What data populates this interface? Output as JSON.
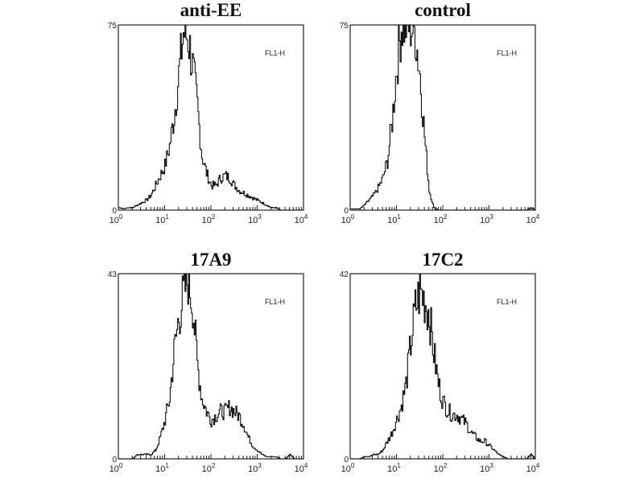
{
  "chart_data": [
    {
      "type": "line",
      "title": "anti-EE",
      "channel_label": "FL1-H",
      "x_scale": "log",
      "xlim": [
        1,
        10000
      ],
      "ylim": [
        0,
        75
      ],
      "y_tick_labels": [
        "0",
        "75"
      ],
      "x_tick_labels": [
        "10^0",
        "10^1",
        "10^2",
        "10^3",
        "10^4"
      ],
      "x": [
        1,
        1.26,
        1.58,
        2,
        2.51,
        3.16,
        3.98,
        5.01,
        6.31,
        7.94,
        10,
        12.6,
        15.8,
        20,
        25.1,
        31.6,
        39.8,
        50.1,
        63.1,
        79.4,
        100,
        126,
        158,
        200,
        251,
        316,
        398,
        501,
        631,
        794,
        1000,
        1259,
        1585,
        1995,
        2512,
        3162,
        3981,
        5012,
        6310,
        7943,
        10000
      ],
      "values": [
        1,
        0.5,
        1,
        1,
        2,
        3,
        4,
        6,
        10,
        14,
        18,
        26,
        38,
        55,
        72,
        70,
        58,
        42,
        22,
        15,
        10,
        10,
        13,
        14,
        13,
        10,
        8,
        7,
        6,
        5,
        4,
        3,
        2,
        1,
        1,
        0,
        0,
        0,
        0,
        0,
        0
      ]
    },
    {
      "type": "line",
      "title": "control",
      "channel_label": "FL1-H",
      "x_scale": "log",
      "xlim": [
        1,
        10000
      ],
      "ylim": [
        0,
        75
      ],
      "y_tick_labels": [
        "0",
        "75"
      ],
      "x_tick_labels": [
        "10^0",
        "10^1",
        "10^2",
        "10^3",
        "10^4"
      ],
      "x": [
        1,
        1.26,
        1.58,
        2,
        2.51,
        3.16,
        3.98,
        5.01,
        6.31,
        7.94,
        10,
        12.6,
        15.8,
        20,
        25.1,
        31.6,
        39.8,
        50.1,
        63.1,
        79.4,
        100,
        126,
        158,
        200,
        251,
        316,
        398,
        501,
        631,
        794,
        1000,
        1259,
        1585,
        1995,
        2512,
        3162,
        3981,
        5012,
        6310,
        7943,
        10000
      ],
      "values": [
        0.5,
        0.5,
        0.5,
        2,
        4,
        6,
        9,
        13,
        20,
        36,
        58,
        75,
        75,
        75,
        72,
        55,
        30,
        8,
        1,
        0,
        0,
        0,
        0,
        0,
        0,
        0,
        0,
        0,
        0,
        0,
        0,
        0,
        0,
        0,
        0,
        0,
        0,
        0,
        0,
        1,
        0
      ]
    },
    {
      "type": "line",
      "title": "17A9",
      "channel_label": "FL1-H",
      "x_scale": "log",
      "xlim": [
        1,
        10000
      ],
      "ylim": [
        0,
        43
      ],
      "y_tick_labels": [
        "0",
        "43"
      ],
      "x_tick_labels": [
        "10^0",
        "10^1",
        "10^2",
        "10^3",
        "10^4"
      ],
      "x": [
        1,
        1.26,
        1.58,
        2,
        2.51,
        3.16,
        3.98,
        5.01,
        6.31,
        7.94,
        10,
        12.6,
        15.8,
        20,
        25.1,
        31.6,
        39.8,
        50.1,
        63.1,
        79.4,
        100,
        126,
        158,
        200,
        251,
        316,
        398,
        501,
        631,
        794,
        1000,
        1259,
        1585,
        1995,
        2512,
        3162,
        3981,
        5012,
        6310,
        7943,
        10000
      ],
      "values": [
        0,
        0,
        0,
        0,
        1,
        1,
        1,
        1,
        2,
        5,
        9,
        14,
        25,
        33,
        38,
        42,
        36,
        22,
        14,
        11,
        9,
        10,
        11,
        11,
        12,
        11,
        10,
        8,
        5,
        3,
        2,
        1,
        0.5,
        0.5,
        0.5,
        0,
        0,
        1,
        0,
        0,
        0
      ]
    },
    {
      "type": "line",
      "title": "17C2",
      "channel_label": "FL1-H",
      "x_scale": "log",
      "xlim": [
        1,
        10000
      ],
      "ylim": [
        0,
        42
      ],
      "y_tick_labels": [
        "0",
        "42"
      ],
      "x_tick_labels": [
        "10^0",
        "10^1",
        "10^2",
        "10^3",
        "10^4"
      ],
      "x": [
        1,
        1.26,
        1.58,
        2,
        2.51,
        3.16,
        3.98,
        5.01,
        6.31,
        7.94,
        10,
        12.6,
        15.8,
        20,
        25.1,
        31.6,
        39.8,
        50.1,
        63.1,
        79.4,
        100,
        126,
        158,
        200,
        251,
        316,
        398,
        501,
        631,
        794,
        1000,
        1259,
        1585,
        1995,
        2512,
        3162,
        3981,
        5012,
        6310,
        7943,
        10000
      ],
      "values": [
        0,
        0,
        0,
        0.5,
        0.5,
        1,
        1,
        2,
        4,
        6,
        9,
        12,
        17,
        26,
        34,
        38,
        36,
        33,
        24,
        17,
        13,
        11,
        10,
        10,
        9,
        8,
        6,
        5,
        4,
        4,
        3,
        2,
        1,
        0.5,
        0,
        0,
        0,
        0,
        0,
        1,
        0
      ]
    }
  ]
}
